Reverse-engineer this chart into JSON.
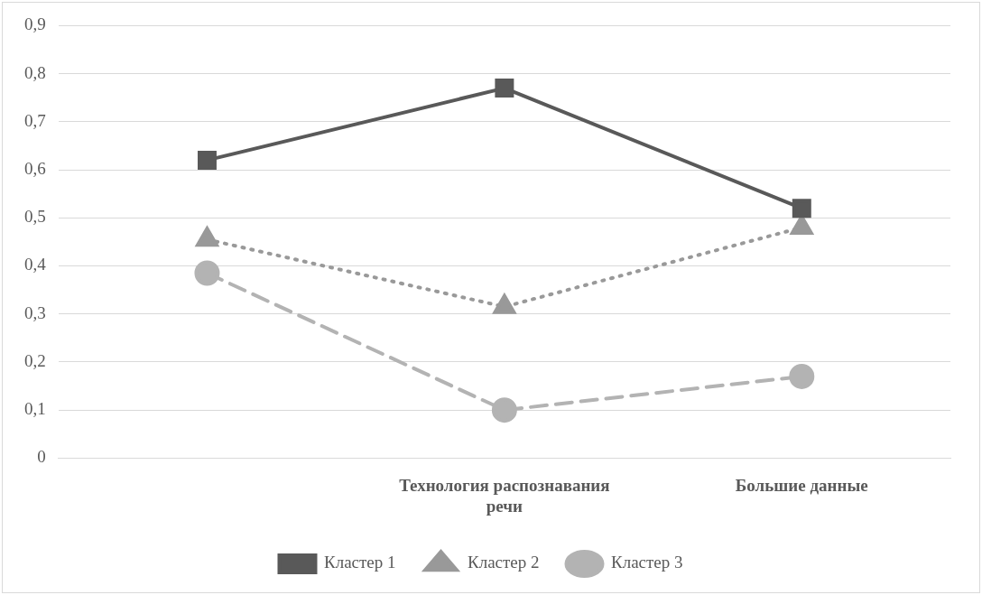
{
  "chart_data": {
    "type": "line",
    "categories": [
      null,
      "Технология распознавания речи",
      "Большие данные"
    ],
    "series": [
      {
        "name": "Кластер 1",
        "color": "#595959",
        "values": [
          0.62,
          0.77,
          0.52
        ],
        "marker": "square",
        "line_style": "solid"
      },
      {
        "name": "Кластер 2",
        "color": "#999999",
        "values": [
          0.455,
          0.315,
          0.48
        ],
        "marker": "triangle",
        "line_style": "dotted"
      },
      {
        "name": "Кластер 3",
        "color": "#b3b3b3",
        "values": [
          0.385,
          0.1,
          0.17
        ],
        "marker": "circle",
        "line_style": "dashed"
      }
    ],
    "ylim": [
      0,
      0.9
    ],
    "yticks": [
      0,
      {
        "value": 0.1,
        "label": "0,1"
      },
      {
        "value": 0.2,
        "label": "0,2"
      },
      {
        "value": 0.3,
        "label": "0,3"
      },
      {
        "value": 0.4,
        "label": "0,4"
      },
      {
        "value": 0.5,
        "label": "0,5"
      },
      {
        "value": 0.6,
        "label": "0,6"
      },
      {
        "value": 0.7,
        "label": "0,7"
      },
      {
        "value": 0.8,
        "label": "0,8"
      },
      {
        "value": 0.9,
        "label": "0,9"
      }
    ],
    "grid": "y",
    "legend": "bottom"
  }
}
